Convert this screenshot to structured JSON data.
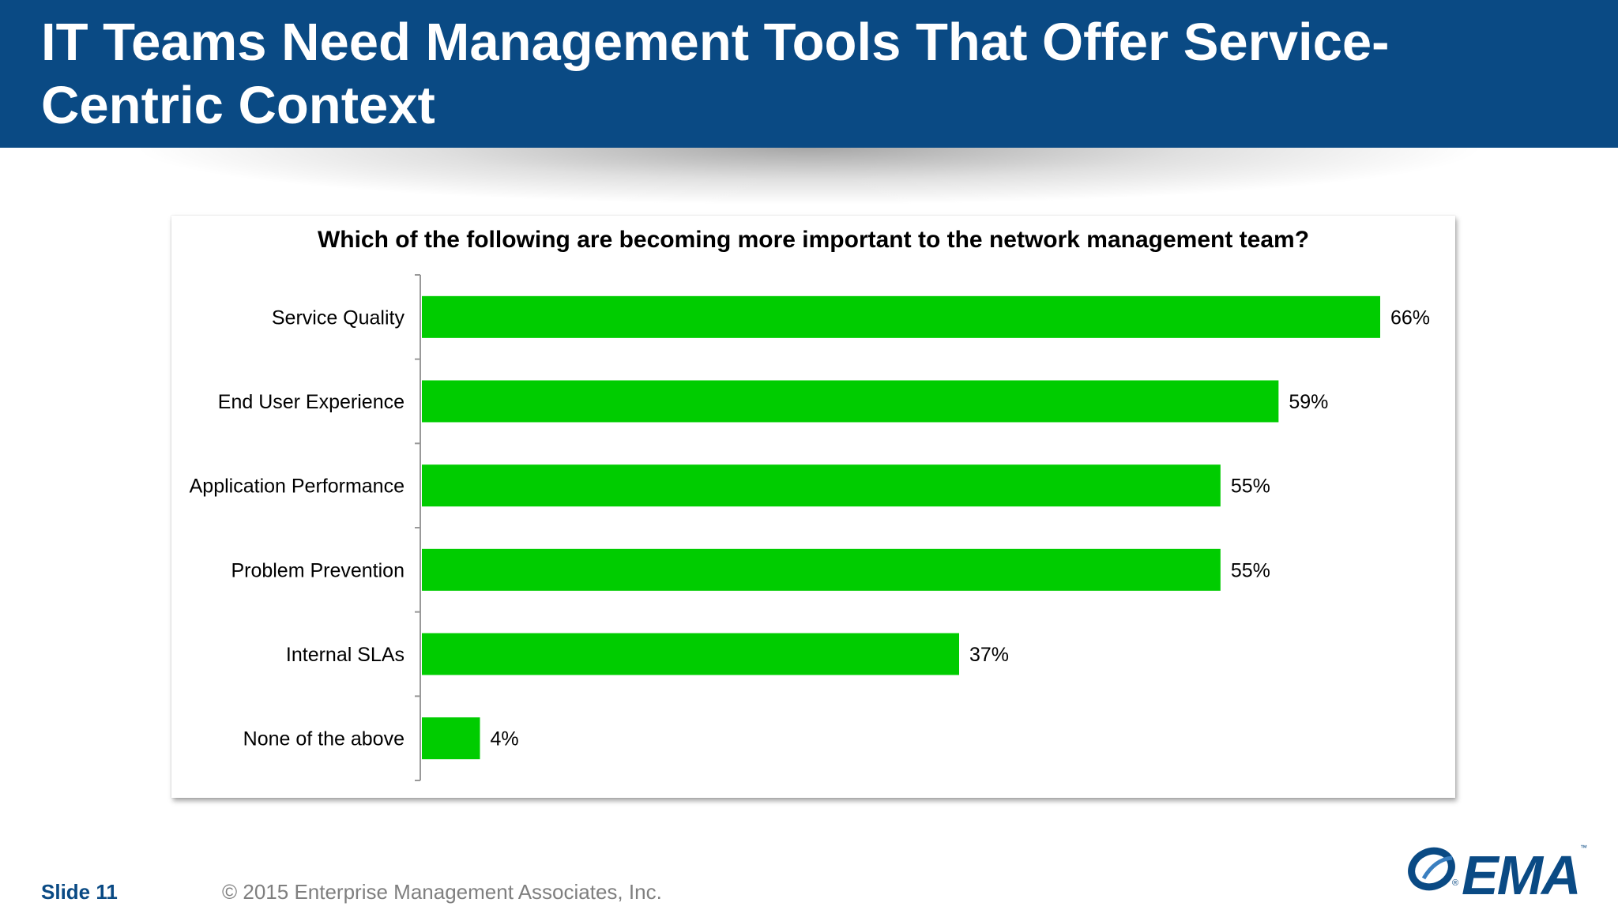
{
  "header": {
    "title": "IT Teams Need Management Tools That Offer Service-Centric Context"
  },
  "chart_data": {
    "type": "bar",
    "orientation": "horizontal",
    "title": "Which of the following are becoming more important to the network management team?",
    "categories": [
      "Service Quality",
      "End User Experience",
      "Application Performance",
      "Problem Prevention",
      "Internal SLAs",
      "None of the above"
    ],
    "values": [
      66,
      59,
      55,
      55,
      37,
      4
    ],
    "data_labels": [
      "66%",
      "59%",
      "55%",
      "55%",
      "37%",
      "4%"
    ],
    "unit": "%",
    "xlim": [
      0,
      66
    ],
    "bar_color": "#00cc00",
    "grid": false,
    "legend": "none"
  },
  "footer": {
    "slide": "Slide 11",
    "copyright": "© 2015 Enterprise Management Associates, Inc."
  },
  "logo": {
    "text": "EMA",
    "tm": "™",
    "reg": "®",
    "color": "#0a4a84"
  },
  "colors": {
    "header_bg": "#0a4a84",
    "bar": "#00cc00",
    "footer_text": "#7f7f7f"
  }
}
